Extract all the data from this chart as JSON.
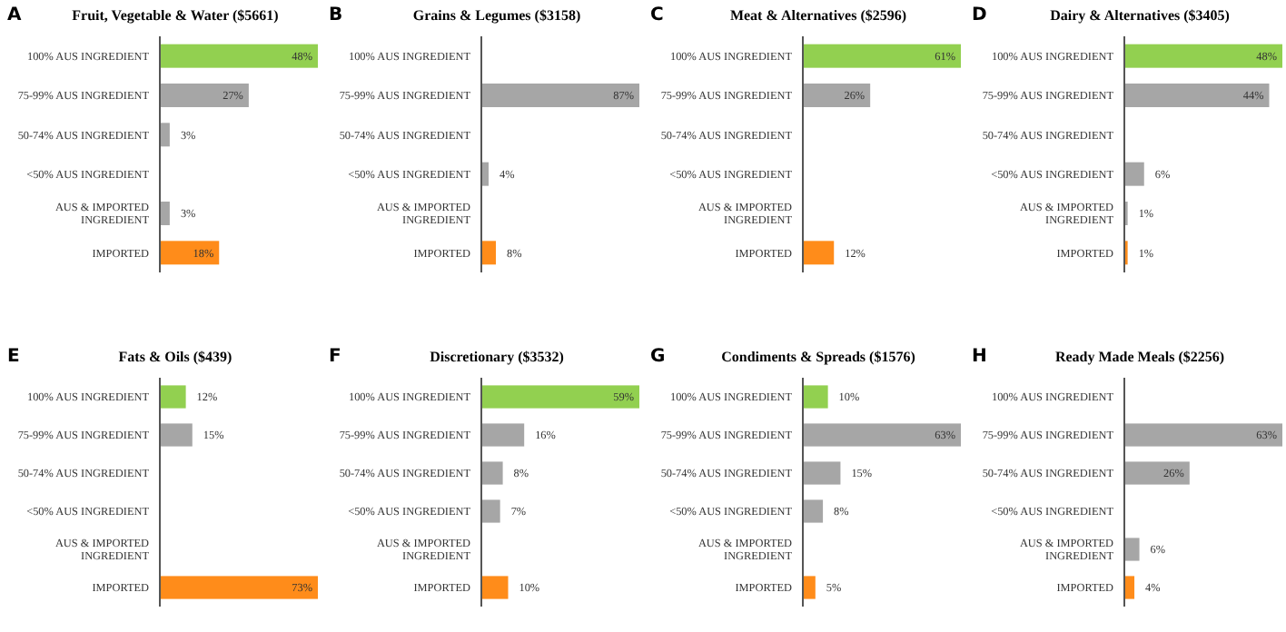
{
  "chart_data": [
    {
      "type": "bar",
      "orientation": "horizontal",
      "title": "Fruit, Vegetable & Water  ($5661)",
      "annotations": [
        "A"
      ],
      "categories": [
        "100% AUS INGREDIENT",
        "75-99% AUS INGREDIENT",
        "50-74% AUS INGREDIENT",
        "<50% AUS INGREDIENT",
        "AUS & IMPORTED INGREDIENT",
        "IMPORTED"
      ],
      "values": [
        48,
        27,
        3,
        null,
        3,
        18
      ],
      "value_labels": [
        "48%",
        "27%",
        "3%",
        null,
        "3%",
        "18%"
      ],
      "colors": [
        "#92d050",
        "#a6a6a6",
        "#a6a6a6",
        null,
        "#a6a6a6",
        "#ff8c1a"
      ]
    },
    {
      "type": "bar",
      "orientation": "horizontal",
      "title": "Grains & Legumes ($3158)",
      "annotations": [
        "B"
      ],
      "categories": [
        "100% AUS INGREDIENT",
        "75-99% AUS INGREDIENT",
        "50-74% AUS INGREDIENT",
        "<50% AUS INGREDIENT",
        "AUS & IMPORTED INGREDIENT",
        "IMPORTED"
      ],
      "values": [
        null,
        87,
        null,
        4,
        null,
        8
      ],
      "value_labels": [
        null,
        "87%",
        null,
        "4%",
        null,
        "8%"
      ],
      "colors": [
        null,
        "#a6a6a6",
        null,
        "#a6a6a6",
        null,
        "#ff8c1a"
      ]
    },
    {
      "type": "bar",
      "orientation": "horizontal",
      "title": "Meat & Alternatives ($2596)",
      "annotations": [
        "C"
      ],
      "categories": [
        "100% AUS INGREDIENT",
        "75-99% AUS INGREDIENT",
        "50-74% AUS INGREDIENT",
        "<50% AUS INGREDIENT",
        "AUS & IMPORTED INGREDIENT",
        "IMPORTED"
      ],
      "values": [
        61,
        26,
        null,
        null,
        null,
        12
      ],
      "value_labels": [
        "61%",
        "26%",
        null,
        null,
        null,
        "12%"
      ],
      "colors": [
        "#92d050",
        "#a6a6a6",
        null,
        null,
        null,
        "#ff8c1a"
      ]
    },
    {
      "type": "bar",
      "orientation": "horizontal",
      "title": "Dairy & Alternatives ($3405)",
      "annotations": [
        "D"
      ],
      "categories": [
        "100% AUS INGREDIENT",
        "75-99% AUS INGREDIENT",
        "50-74% AUS INGREDIENT",
        "<50% AUS INGREDIENT",
        "AUS & IMPORTED INGREDIENT",
        "IMPORTED"
      ],
      "values": [
        48,
        44,
        null,
        6,
        1,
        1
      ],
      "value_labels": [
        "48%",
        "44%",
        null,
        "6%",
        "1%",
        "1%"
      ],
      "colors": [
        "#92d050",
        "#a6a6a6",
        null,
        "#a6a6a6",
        "#a6a6a6",
        "#ff8c1a"
      ]
    },
    {
      "type": "bar",
      "orientation": "horizontal",
      "title": "Fats & Oils ($439)",
      "annotations": [
        "E"
      ],
      "categories": [
        "100% AUS INGREDIENT",
        "75-99% AUS INGREDIENT",
        "50-74% AUS INGREDIENT",
        "<50% AUS INGREDIENT",
        "AUS & IMPORTED INGREDIENT",
        "IMPORTED"
      ],
      "values": [
        12,
        15,
        null,
        null,
        null,
        73
      ],
      "value_labels": [
        "12%",
        "15%",
        null,
        null,
        null,
        "73%"
      ],
      "colors": [
        "#92d050",
        "#a6a6a6",
        null,
        null,
        null,
        "#ff8c1a"
      ]
    },
    {
      "type": "bar",
      "orientation": "horizontal",
      "title": "Discretionary ($3532)",
      "annotations": [
        "F"
      ],
      "categories": [
        "100% AUS INGREDIENT",
        "75-99% AUS INGREDIENT",
        "50-74% AUS INGREDIENT",
        "<50% AUS INGREDIENT",
        "AUS & IMPORTED INGREDIENT",
        "IMPORTED"
      ],
      "values": [
        59,
        16,
        8,
        7,
        null,
        10
      ],
      "value_labels": [
        "59%",
        "16%",
        "8%",
        "7%",
        null,
        "10%"
      ],
      "colors": [
        "#92d050",
        "#a6a6a6",
        "#a6a6a6",
        "#a6a6a6",
        null,
        "#ff8c1a"
      ]
    },
    {
      "type": "bar",
      "orientation": "horizontal",
      "title": "Condiments & Spreads ($1576)",
      "annotations": [
        "G"
      ],
      "categories": [
        "100% AUS INGREDIENT",
        "75-99% AUS INGREDIENT",
        "50-74% AUS INGREDIENT",
        "<50% AUS INGREDIENT",
        "AUS & IMPORTED INGREDIENT",
        "IMPORTED"
      ],
      "values": [
        10,
        63,
        15,
        8,
        null,
        5
      ],
      "value_labels": [
        "10%",
        "63%",
        "15%",
        "8%",
        null,
        "5%"
      ],
      "colors": [
        "#92d050",
        "#a6a6a6",
        "#a6a6a6",
        "#a6a6a6",
        null,
        "#ff8c1a"
      ]
    },
    {
      "type": "bar",
      "orientation": "horizontal",
      "title": "Ready Made Meals ($2256)",
      "annotations": [
        "H"
      ],
      "categories": [
        "100% AUS INGREDIENT",
        "75-99% AUS INGREDIENT",
        "50-74% AUS INGREDIENT",
        "<50% AUS INGREDIENT",
        "AUS & IMPORTED INGREDIENT",
        "IMPORTED"
      ],
      "values": [
        null,
        63,
        26,
        null,
        6,
        4
      ],
      "value_labels": [
        null,
        "63%",
        "26%",
        null,
        "6%",
        "4%"
      ],
      "colors": [
        null,
        "#a6a6a6",
        "#a6a6a6",
        null,
        "#a6a6a6",
        "#ff8c1a"
      ]
    }
  ]
}
